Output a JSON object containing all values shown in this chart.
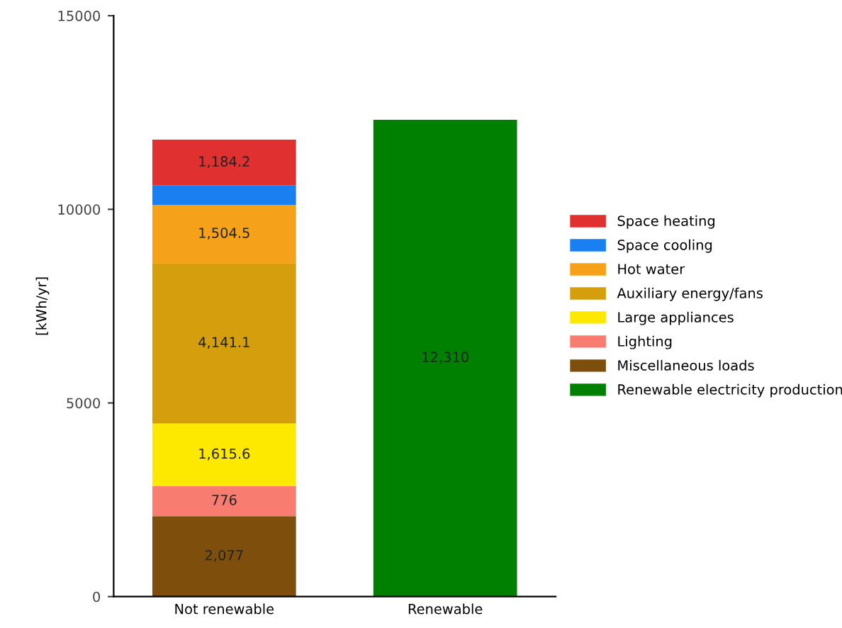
{
  "chart_data": {
    "type": "bar",
    "stacked": true,
    "ylabel": "[kWh/yr]",
    "categories": [
      "Not renewable",
      "Renewable"
    ],
    "ylim": [
      0,
      15000
    ],
    "yticks": [
      0,
      5000,
      10000,
      15000
    ],
    "grid": false,
    "legend": "right",
    "series": [
      {
        "name": "Renewable electricity production",
        "color": "#008000",
        "values": [
          null,
          12310
        ],
        "value_labels": [
          null,
          "12,310"
        ]
      },
      {
        "name": "Miscellaneous loads",
        "color": "#7d4e0c",
        "values": [
          2077,
          null
        ],
        "value_labels": [
          "2,077",
          null
        ]
      },
      {
        "name": "Lighting",
        "color": "#f87c70",
        "values": [
          776,
          null
        ],
        "value_labels": [
          "776",
          null
        ]
      },
      {
        "name": "Large appliances",
        "color": "#fde800",
        "values": [
          1615.6,
          null
        ],
        "value_labels": [
          "1,615.6",
          null
        ]
      },
      {
        "name": "Auxiliary energy/fans",
        "color": "#d49e0c",
        "values": [
          4141.1,
          null
        ],
        "value_labels": [
          "4,141.1",
          null
        ]
      },
      {
        "name": "Hot water",
        "color": "#f5a21a",
        "values": [
          1504.5,
          null
        ],
        "value_labels": [
          "1,504.5",
          null
        ]
      },
      {
        "name": "Space cooling",
        "color": "#1a7ff0",
        "values": [
          500,
          null
        ],
        "value_labels": [
          null,
          null
        ]
      },
      {
        "name": "Space heating",
        "color": "#e03030",
        "values": [
          1184.2,
          null
        ],
        "value_labels": [
          "1,184.2",
          null
        ]
      }
    ]
  }
}
